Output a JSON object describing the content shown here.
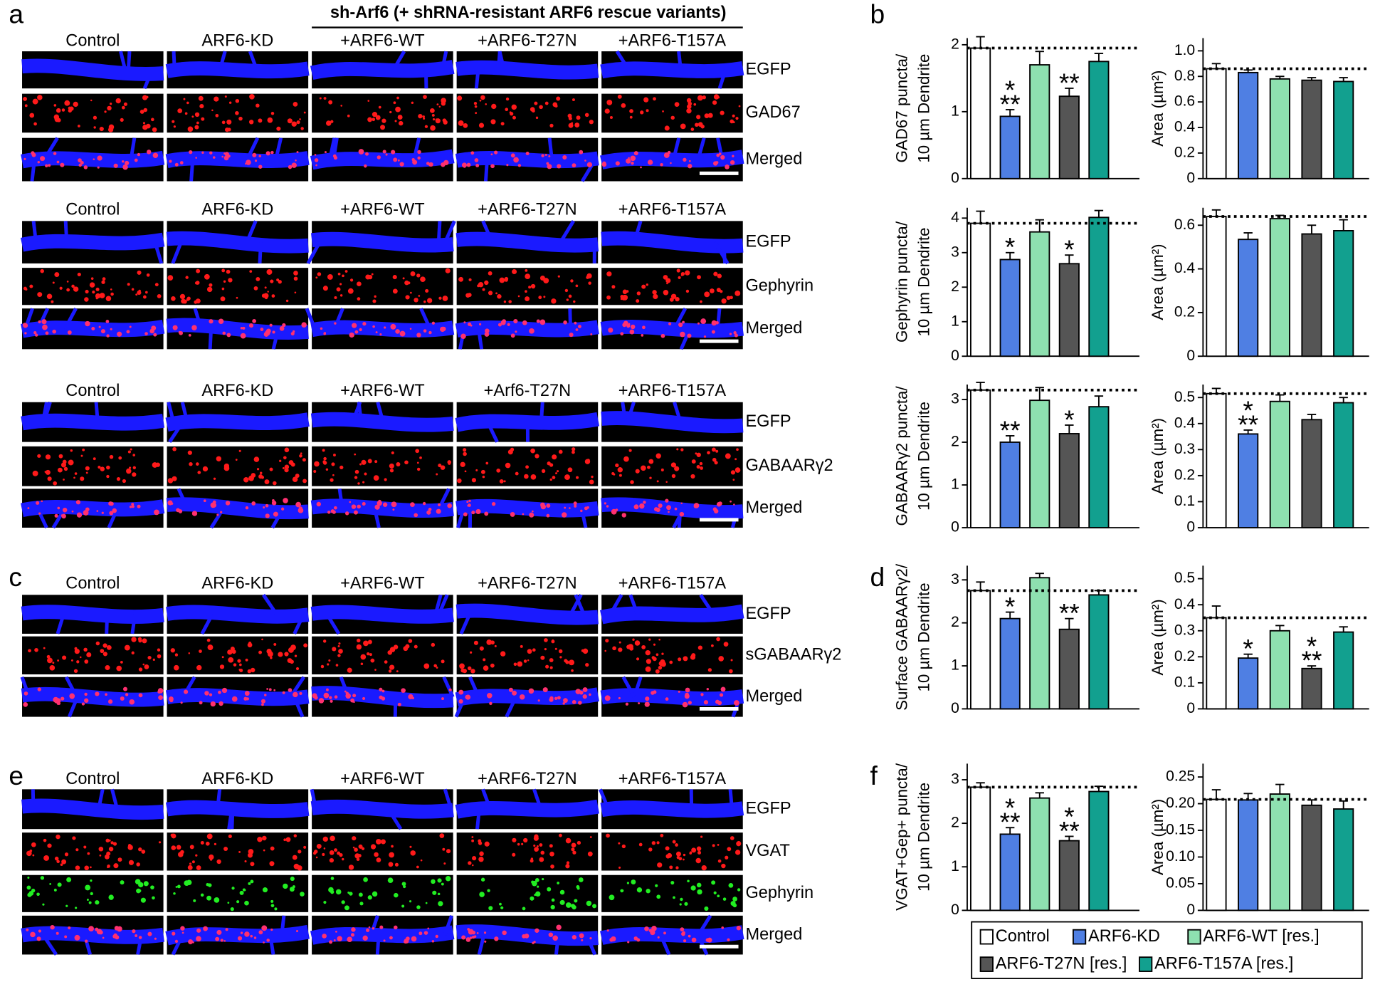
{
  "title": "sh-Arf6 (+ shRNA-resistant ARF6 rescue variants)",
  "panel_labels": [
    "a",
    "b",
    "c",
    "d",
    "e",
    "f"
  ],
  "image_groups": [
    {
      "columns": [
        "Control",
        "ARF6-KD",
        "+ARF6-WT",
        "+ARF6-T27N",
        "+ARF6-T157A"
      ],
      "rows": [
        "EGFP",
        "GAD67",
        "Merged"
      ]
    },
    {
      "columns": [
        "Control",
        "ARF6-KD",
        "+ARF6-WT",
        "+ARF6-T27N",
        "+ARF6-T157A"
      ],
      "rows": [
        "EGFP",
        "Gephyrin",
        "Merged"
      ]
    },
    {
      "columns": [
        "Control",
        "ARF6-KD",
        "+ARF6-WT",
        "+Arf6-T27N",
        "+ARF6-T157A"
      ],
      "rows": [
        "EGFP",
        "GABAARγ2",
        "Merged"
      ]
    },
    {
      "columns": [
        "Control",
        "ARF6-KD",
        "+ARF6-WT",
        "+ARF6-T27N",
        "+ARF6-T157A"
      ],
      "rows": [
        "EGFP",
        "sGABAARγ2",
        "Merged"
      ]
    },
    {
      "columns": [
        "Control",
        "ARF6-KD",
        "+ARF6-WT",
        "+ARF6-T27N",
        "+ARF6-T157A"
      ],
      "rows": [
        "EGFP",
        "VGAT",
        "Gephyrin",
        "Merged"
      ]
    }
  ],
  "legend": [
    {
      "name": "Control",
      "color": "#ffffff"
    },
    {
      "name": "ARF6-KD",
      "color": "#4f7fe3"
    },
    {
      "name": "ARF6-WT [res.]",
      "color": "#8ee0b0"
    },
    {
      "name": "ARF6-T27N [res.]",
      "color": "#555555"
    },
    {
      "name": "ARF6-T157A [res.]",
      "color": "#12a08f"
    }
  ],
  "chart_data": [
    {
      "type": "bar",
      "ylabel": [
        "GAD67 puncta/",
        "10 µm Dendrite"
      ],
      "ylim": [
        0,
        2.1
      ],
      "yticks": [
        0,
        1,
        2
      ],
      "values": [
        1.95,
        0.93,
        1.7,
        1.23,
        1.75
      ],
      "errors": [
        0.17,
        0.1,
        0.2,
        0.12,
        0.12
      ],
      "reference": 1.95,
      "annotations": [
        null,
        [
          "*",
          "**"
        ],
        null,
        [
          "**"
        ],
        null
      ]
    },
    {
      "type": "bar",
      "ylabel": [
        "Area (µm²)"
      ],
      "ylim": [
        0,
        1.1
      ],
      "yticks": [
        0,
        0.2,
        0.4,
        0.6,
        0.8,
        {
          "value": 1,
          "label": "1.0"
        }
      ],
      "values": [
        0.86,
        0.83,
        0.78,
        0.77,
        0.76
      ],
      "errors": [
        0.04,
        0.02,
        0.02,
        0.02,
        0.03
      ],
      "reference": 0.86,
      "annotations": [
        null,
        null,
        null,
        null,
        null
      ]
    },
    {
      "type": "bar",
      "ylabel": [
        "Gephyrin puncta/",
        "10 µm Dendrite"
      ],
      "ylim": [
        0,
        4.3
      ],
      "yticks": [
        0,
        1,
        2,
        3,
        4
      ],
      "values": [
        3.85,
        2.8,
        3.6,
        2.68,
        4.02
      ],
      "errors": [
        0.35,
        0.2,
        0.35,
        0.25,
        0.2
      ],
      "reference": 3.85,
      "annotations": [
        null,
        [
          "*"
        ],
        null,
        [
          "*"
        ],
        null
      ]
    },
    {
      "type": "bar",
      "ylabel": [
        "Area (µm²)"
      ],
      "ylim": [
        0,
        0.68
      ],
      "yticks": [
        0,
        0.2,
        0.4,
        0.6
      ],
      "values": [
        0.64,
        0.535,
        0.63,
        0.56,
        0.575
      ],
      "errors": [
        0.03,
        0.03,
        0.015,
        0.04,
        0.05
      ],
      "reference": 0.64,
      "annotations": [
        null,
        null,
        null,
        null,
        null
      ]
    },
    {
      "type": "bar",
      "ylabel": [
        "GABAARγ2 puncta/",
        "10 µm Dendrite"
      ],
      "ylim": [
        0,
        3.35
      ],
      "yticks": [
        0,
        1,
        2,
        3
      ],
      "values": [
        3.22,
        2.0,
        2.98,
        2.2,
        2.83
      ],
      "errors": [
        0.18,
        0.15,
        0.3,
        0.2,
        0.25
      ],
      "reference": 3.22,
      "annotations": [
        null,
        [
          "**"
        ],
        null,
        [
          "*"
        ],
        null
      ]
    },
    {
      "type": "bar",
      "ylabel": [
        "Area (µm²)"
      ],
      "ylim": [
        0,
        0.55
      ],
      "yticks": [
        0,
        0.1,
        0.2,
        0.3,
        0.4,
        0.5
      ],
      "values": [
        0.515,
        0.36,
        0.485,
        0.415,
        0.48
      ],
      "errors": [
        0.02,
        0.015,
        0.025,
        0.02,
        0.02
      ],
      "reference": 0.515,
      "annotations": [
        null,
        [
          "*",
          "**"
        ],
        null,
        null,
        null
      ]
    },
    {
      "type": "bar",
      "ylabel": [
        "Surface GABAARγ2/",
        "10 µm Dendrite"
      ],
      "ylim": [
        0,
        3.33
      ],
      "yticks": [
        0,
        1,
        2,
        3
      ],
      "values": [
        2.75,
        2.1,
        3.05,
        1.85,
        2.65
      ],
      "errors": [
        0.2,
        0.15,
        0.1,
        0.25,
        0.1
      ],
      "reference": 2.75,
      "annotations": [
        null,
        [
          "*"
        ],
        null,
        [
          "**"
        ],
        null
      ]
    },
    {
      "type": "bar",
      "ylabel": [
        "Area (µm²)"
      ],
      "ylim": [
        0,
        0.55
      ],
      "yticks": [
        0,
        0.1,
        0.2,
        0.3,
        0.4,
        0.5
      ],
      "values": [
        0.35,
        0.195,
        0.3,
        0.155,
        0.295
      ],
      "errors": [
        0.045,
        0.015,
        0.02,
        0.01,
        0.02
      ],
      "reference": 0.35,
      "annotations": [
        null,
        [
          "*"
        ],
        null,
        [
          "*",
          "**"
        ],
        null
      ]
    },
    {
      "type": "bar",
      "ylabel": [
        "VGAT+Gep+ puncta/",
        "10 µm Dendrite"
      ],
      "ylim": [
        0,
        3.37
      ],
      "yticks": [
        0,
        1,
        2,
        3
      ],
      "values": [
        2.83,
        1.75,
        2.58,
        1.6,
        2.73
      ],
      "errors": [
        0.1,
        0.15,
        0.12,
        0.1,
        0.12
      ],
      "reference": 2.83,
      "annotations": [
        null,
        [
          "*",
          "**"
        ],
        null,
        [
          "*",
          "**"
        ],
        null
      ]
    },
    {
      "type": "bar",
      "ylabel": [
        "Area (µm²)"
      ],
      "ylim": [
        0,
        0.275
      ],
      "yticks": [
        0,
        0.05,
        {
          "value": 0.1,
          "label": "0.10"
        },
        0.15,
        {
          "value": 0.2,
          "label": "0.20"
        },
        0.25
      ],
      "values": [
        0.208,
        0.207,
        0.218,
        0.197,
        0.19
      ],
      "errors": [
        0.018,
        0.012,
        0.018,
        0.01,
        0.015
      ],
      "reference": 0.208,
      "annotations": [
        null,
        null,
        null,
        null,
        null
      ]
    }
  ]
}
